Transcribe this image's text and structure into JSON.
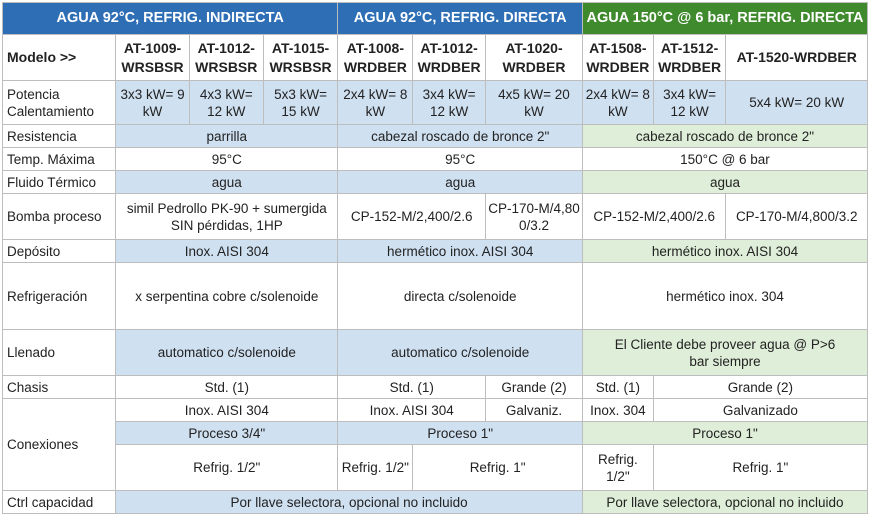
{
  "groups": [
    "AGUA 92°C, REFRIG. INDIRECTA",
    "AGUA 92°C, REFRIG. DIRECTA",
    "AGUA 150°C @ 6 bar, REFRIG. DIRECTA"
  ],
  "models_label": "Modelo >>",
  "models": [
    "AT-1009-WRSBSR",
    "AT-1012-WRSBSR",
    "AT-1015-WRSBSR",
    "AT-1008-WRDBER",
    "AT-1012-WRDBER",
    "AT-1020-WRDBER",
    "AT-1508-WRDBER",
    "AT-1512-WRDBER",
    "AT-1520-WRDBER"
  ],
  "rows": {
    "potencia": {
      "label": "Potencia Calentamiento",
      "values": [
        "3x3 kW= 9 kW",
        "4x3 kW= 12 kW",
        "5x3 kW= 15 kW",
        "2x4 kW= 8 kW",
        "3x4 kW= 12 kW",
        "4x5 kW= 20 kW",
        "2x4 kW= 8 kW",
        "3x4 kW= 12 kW",
        "5x4 kW= 20 kW"
      ]
    },
    "resistencia": {
      "label": "Resistencia",
      "g1": "parrilla",
      "g2": "cabezal roscado de bronce 2\"",
      "g3": "cabezal roscado de bronce 2\""
    },
    "temp": {
      "label": "Temp. Máxima",
      "g1": "95°C",
      "g2": "95°C",
      "g3": "150°C @ 6 bar"
    },
    "fluido": {
      "label": "Fluido Térmico",
      "g1": "agua",
      "g2": "agua",
      "g3": "agua"
    },
    "bomba": {
      "label": "Bomba proceso",
      "g1": "simil Pedrollo PK-90 + sumergida SIN pérdidas, 1HP",
      "g2a": "CP-152-M/2,400/2.6",
      "g2b": "CP-170-M/4,800/3.2",
      "g3a": "CP-152-M/2,400/2.6",
      "g3b": "CP-170-M/4,800/3.2"
    },
    "deposito": {
      "label": "Depósito",
      "g1": "Inox. AISI 304",
      "g2": "hermético inox. AISI 304",
      "g3": "hermético inox. AISI 304"
    },
    "refrigeracion": {
      "label": "Refrigeración",
      "g1": "x serpentina cobre c/solenoide",
      "g2": "directa c/solenoide",
      "g3": "hermético inox. 304"
    },
    "llenado": {
      "label": "Llenado",
      "g1": "automatico c/solenoide",
      "g2": "automatico c/solenoide",
      "g3": "El Cliente debe proveer agua @ P>6 bar siempre"
    },
    "chasis": {
      "label": "Chasis",
      "g1": "Std. (1)",
      "g2a": "Std. (1)",
      "g2b": "Grande (2)",
      "g3a": "Std. (1)",
      "g3b": "Grande (2)"
    },
    "conexiones": {
      "label": "Conexiones",
      "mat_g1": "Inox. AISI 304",
      "mat_g2a": "Inox. AISI 304",
      "mat_g2b": "Galvaniz.",
      "mat_g3a": "Inox. 304",
      "mat_g3b": "Galvanizado",
      "proc_g1": "Proceso 3/4\"",
      "proc_g2": "Proceso 1\"",
      "proc_g3": "Proceso 1\"",
      "ref_g1": "Refrig. 1/2\"",
      "ref_g2a": "Refrig. 1/2\"",
      "ref_g2b": "Refrig.  1\"",
      "ref_g3a": "Refrig. 1/2\"",
      "ref_g3b": "Refrig.  1\""
    },
    "ctrl": {
      "label": "Ctrl capacidad",
      "g12": "Por llave selectora, opcional no incluido",
      "g3": "Por llave selectora, opcional no incluido"
    }
  }
}
